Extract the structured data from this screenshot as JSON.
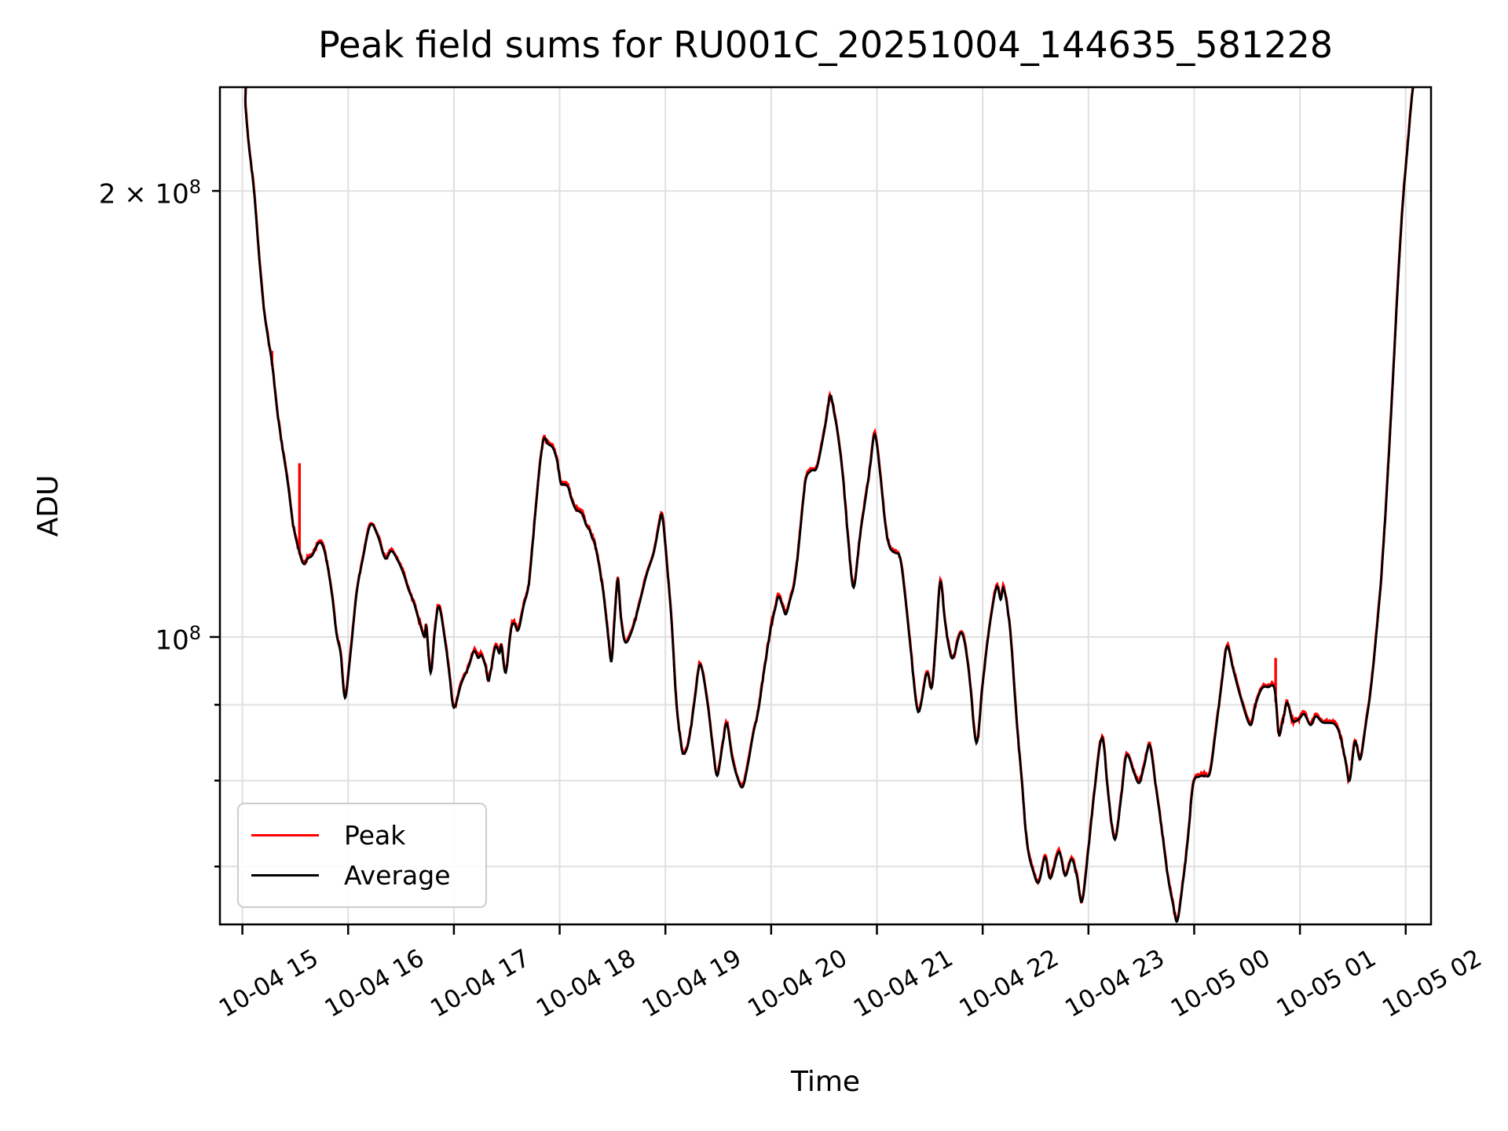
{
  "styles": {
    "background": "#ffffff",
    "grid_color": "#e0e0e0",
    "spine_color": "#000000",
    "legend_border": "#cccccc",
    "peak_color": "#ff0000",
    "average_color": "#000000"
  },
  "chart_data": {
    "type": "line",
    "title": "Peak field sums for RU001C_20251004_144635_581228",
    "xlabel": "Time",
    "ylabel": "ADU",
    "yscale": "log",
    "ylim": [
      64000000.0,
      236000000.0
    ],
    "xlim_hours": [
      14.788,
      26.24
    ],
    "grid": true,
    "legend": {
      "position": "lower left",
      "entries": [
        "Peak",
        "Average"
      ]
    },
    "x_ticks": [
      {
        "hour": 15,
        "label": "10-04 15"
      },
      {
        "hour": 16,
        "label": "10-04 16"
      },
      {
        "hour": 17,
        "label": "10-04 17"
      },
      {
        "hour": 18,
        "label": "10-04 18"
      },
      {
        "hour": 19,
        "label": "10-04 19"
      },
      {
        "hour": 20,
        "label": "10-04 20"
      },
      {
        "hour": 21,
        "label": "10-04 21"
      },
      {
        "hour": 22,
        "label": "10-04 22"
      },
      {
        "hour": 23,
        "label": "10-04 23"
      },
      {
        "hour": 24,
        "label": "10-05 00"
      },
      {
        "hour": 25,
        "label": "10-05 01"
      },
      {
        "hour": 26,
        "label": "10-05 02"
      }
    ],
    "y_ticks": {
      "major_labeled": [
        {
          "value": 100000000.0,
          "base": "10",
          "exp": "8"
        }
      ],
      "minor_labeled": [
        {
          "value": 200000000.0,
          "base": "2 × 10",
          "exp": "8"
        }
      ],
      "minor_unlabeled": [
        70000000.0,
        80000000.0,
        90000000.0
      ]
    },
    "x_unit": "hours since 2025-10-04 00:00",
    "y_unit": "ADU",
    "series": [
      {
        "name": "Average",
        "color": "#000000",
        "points": [
          [
            14.79,
            240000000.0
          ],
          [
            15.01,
            240000000.0
          ],
          [
            15.03,
            228000000.0
          ],
          [
            15.06,
            215000000.0
          ],
          [
            15.11,
            200000000.0
          ],
          [
            15.16,
            180000000.0
          ],
          [
            15.21,
            165000000.0
          ],
          [
            15.28,
            153000000.0
          ],
          [
            15.33,
            142000000.0
          ],
          [
            15.38,
            134000000.0
          ],
          [
            15.43,
            127000000.0
          ],
          [
            15.48,
            119000000.0
          ],
          [
            15.54,
            114000000.0
          ],
          [
            15.58,
            112000000.0
          ],
          [
            15.62,
            113000000.0
          ],
          [
            15.66,
            113500000.0
          ],
          [
            15.72,
            115700000.0
          ],
          [
            15.76,
            115200000.0
          ],
          [
            15.8,
            112200000.0
          ],
          [
            15.85,
            106400000.0
          ],
          [
            15.89,
            100500000.0
          ],
          [
            15.93,
            97300000.0
          ],
          [
            15.97,
            91000000.0
          ],
          [
            16.02,
            97000000.0
          ],
          [
            16.08,
            107000000.0
          ],
          [
            16.14,
            113000000.0
          ],
          [
            16.21,
            119000000.0
          ],
          [
            16.28,
            117000000.0
          ],
          [
            16.35,
            113000000.0
          ],
          [
            16.41,
            114300000.0
          ],
          [
            16.48,
            112200000.0
          ],
          [
            16.53,
            110000000.0
          ],
          [
            16.57,
            107700000.0
          ],
          [
            16.62,
            105500000.0
          ],
          [
            16.67,
            102600000.0
          ],
          [
            16.72,
            100000000.0
          ],
          [
            16.74,
            101500000.0
          ],
          [
            16.78,
            94600000.0
          ],
          [
            16.82,
            101000000.0
          ],
          [
            16.86,
            104800000.0
          ],
          [
            16.92,
            99000000.0
          ],
          [
            16.96,
            94000000.0
          ],
          [
            17.0,
            89600000.0
          ],
          [
            17.07,
            93000000.0
          ],
          [
            17.14,
            95500000.0
          ],
          [
            17.19,
            97800000.0
          ],
          [
            17.23,
            96800000.0
          ],
          [
            17.26,
            97200000.0
          ],
          [
            17.3,
            95500000.0
          ],
          [
            17.33,
            93500000.0
          ],
          [
            17.39,
            98400000.0
          ],
          [
            17.43,
            97500000.0
          ],
          [
            17.45,
            98600000.0
          ],
          [
            17.49,
            94600000.0
          ],
          [
            17.54,
            101100000.0
          ],
          [
            17.57,
            102100000.0
          ],
          [
            17.61,
            101100000.0
          ],
          [
            17.66,
            105000000.0
          ],
          [
            17.71,
            108800000.0
          ],
          [
            17.76,
            119000000.0
          ],
          [
            17.81,
            130000000.0
          ],
          [
            17.85,
            136000000.0
          ],
          [
            17.89,
            135000000.0
          ],
          [
            17.94,
            134000000.0
          ],
          [
            17.98,
            131000000.0
          ],
          [
            18.01,
            127000000.0
          ],
          [
            18.04,
            126800000.0
          ],
          [
            18.08,
            126200000.0
          ],
          [
            18.11,
            124000000.0
          ],
          [
            18.15,
            122000000.0
          ],
          [
            18.19,
            121500000.0
          ],
          [
            18.22,
            120800000.0
          ],
          [
            18.25,
            119000000.0
          ],
          [
            18.28,
            118200000.0
          ],
          [
            18.31,
            116500000.0
          ],
          [
            18.33,
            115800000.0
          ],
          [
            18.37,
            112000000.0
          ],
          [
            18.41,
            107500000.0
          ],
          [
            18.44,
            103000000.0
          ],
          [
            18.46,
            100000000.0
          ],
          [
            18.49,
            96300000.0
          ],
          [
            18.52,
            103000000.0
          ],
          [
            18.55,
            109300000.0
          ],
          [
            18.58,
            103000000.0
          ],
          [
            18.62,
            99200000.0
          ],
          [
            18.68,
            100800000.0
          ],
          [
            18.75,
            105000000.0
          ],
          [
            18.82,
            110000000.0
          ],
          [
            18.89,
            114000000.0
          ],
          [
            18.94,
            119000000.0
          ],
          [
            18.97,
            120700000.0
          ],
          [
            19.01,
            113000000.0
          ],
          [
            19.06,
            102000000.0
          ],
          [
            19.1,
            91000000.0
          ],
          [
            19.14,
            85500000.0
          ],
          [
            19.17,
            83400000.0
          ],
          [
            19.22,
            85000000.0
          ],
          [
            19.28,
            91000000.0
          ],
          [
            19.33,
            95800000.0
          ],
          [
            19.4,
            90000000.0
          ],
          [
            19.45,
            84000000.0
          ],
          [
            19.49,
            80600000.0
          ],
          [
            19.54,
            84500000.0
          ],
          [
            19.58,
            87400000.0
          ],
          [
            19.63,
            83000000.0
          ],
          [
            19.68,
            80400000.0
          ],
          [
            19.73,
            79200000.0
          ],
          [
            19.78,
            82000000.0
          ],
          [
            19.83,
            86000000.0
          ],
          [
            19.88,
            89300000.0
          ],
          [
            19.92,
            93500000.0
          ],
          [
            19.96,
            97700000.0
          ],
          [
            20.0,
            101700000.0
          ],
          [
            20.04,
            104600000.0
          ],
          [
            20.07,
            106500000.0
          ],
          [
            20.11,
            104800000.0
          ],
          [
            20.14,
            103600000.0
          ],
          [
            20.18,
            106000000.0
          ],
          [
            20.22,
            108800000.0
          ],
          [
            20.26,
            115000000.0
          ],
          [
            20.3,
            123000000.0
          ],
          [
            20.33,
            128000000.0
          ],
          [
            20.38,
            129500000.0
          ],
          [
            20.43,
            130000000.0
          ],
          [
            20.48,
            135000000.0
          ],
          [
            20.52,
            140000000.0
          ],
          [
            20.56,
            145500000.0
          ],
          [
            20.6,
            141000000.0
          ],
          [
            20.63,
            137000000.0
          ],
          [
            20.68,
            128000000.0
          ],
          [
            20.73,
            116000000.0
          ],
          [
            20.78,
            108000000.0
          ],
          [
            20.84,
            117000000.0
          ],
          [
            20.9,
            125000000.0
          ],
          [
            20.94,
            131000000.0
          ],
          [
            20.98,
            137000000.0
          ],
          [
            21.03,
            129000000.0
          ],
          [
            21.08,
            119000000.0
          ],
          [
            21.12,
            115000000.0
          ],
          [
            21.17,
            114000000.0
          ],
          [
            21.22,
            113000000.0
          ],
          [
            21.27,
            106000000.0
          ],
          [
            21.32,
            98000000.0
          ],
          [
            21.39,
            89000000.0
          ],
          [
            21.47,
            94500000.0
          ],
          [
            21.52,
            92500000.0
          ],
          [
            21.56,
            100000000.0
          ],
          [
            21.6,
            109000000.0
          ],
          [
            21.64,
            103000000.0
          ],
          [
            21.68,
            98500000.0
          ],
          [
            21.72,
            96800000.0
          ],
          [
            21.8,
            100700000.0
          ],
          [
            21.87,
            94700000.0
          ],
          [
            21.94,
            84800000.0
          ],
          [
            22.0,
            93000000.0
          ],
          [
            22.06,
            101000000.0
          ],
          [
            22.13,
            108000000.0
          ],
          [
            22.17,
            106000000.0
          ],
          [
            22.2,
            107800000.0
          ],
          [
            22.26,
            101000000.0
          ],
          [
            22.32,
            88000000.0
          ],
          [
            22.37,
            80000000.0
          ],
          [
            22.42,
            72500000.0
          ],
          [
            22.48,
            69400000.0
          ],
          [
            22.53,
            68300000.0
          ],
          [
            22.59,
            71000000.0
          ],
          [
            22.64,
            68700000.0
          ],
          [
            22.72,
            71600000.0
          ],
          [
            22.78,
            69000000.0
          ],
          [
            22.84,
            70800000.0
          ],
          [
            22.89,
            69000000.0
          ],
          [
            22.94,
            66300000.0
          ],
          [
            23.0,
            72000000.0
          ],
          [
            23.06,
            79000000.0
          ],
          [
            23.13,
            85500000.0
          ],
          [
            23.19,
            78000000.0
          ],
          [
            23.25,
            73000000.0
          ],
          [
            23.31,
            78000000.0
          ],
          [
            23.36,
            83200000.0
          ],
          [
            23.43,
            81000000.0
          ],
          [
            23.48,
            79700000.0
          ],
          [
            23.53,
            82000000.0
          ],
          [
            23.58,
            84500000.0
          ],
          [
            23.64,
            79000000.0
          ],
          [
            23.69,
            74500000.0
          ],
          [
            23.75,
            69000000.0
          ],
          [
            23.8,
            66000000.0
          ],
          [
            23.84,
            64300000.0
          ],
          [
            23.89,
            68000000.0
          ],
          [
            23.94,
            73000000.0
          ],
          [
            23.99,
            79500000.0
          ],
          [
            24.05,
            80500000.0
          ],
          [
            24.1,
            80600000.0
          ],
          [
            24.15,
            81000000.0
          ],
          [
            24.2,
            86000000.0
          ],
          [
            24.26,
            93000000.0
          ],
          [
            24.31,
            98500000.0
          ],
          [
            24.37,
            95000000.0
          ],
          [
            24.44,
            91000000.0
          ],
          [
            24.53,
            87200000.0
          ],
          [
            24.58,
            90000000.0
          ],
          [
            24.64,
            92300000.0
          ],
          [
            24.7,
            92500000.0
          ],
          [
            24.76,
            92200000.0
          ],
          [
            24.8,
            86000000.0
          ],
          [
            24.84,
            88000000.0
          ],
          [
            24.88,
            90300000.0
          ],
          [
            24.93,
            87800000.0
          ],
          [
            24.99,
            88000000.0
          ],
          [
            25.04,
            88700000.0
          ],
          [
            25.1,
            87200000.0
          ],
          [
            25.15,
            88400000.0
          ],
          [
            25.21,
            87600000.0
          ],
          [
            25.27,
            87500000.0
          ],
          [
            25.33,
            87300000.0
          ],
          [
            25.38,
            85800000.0
          ],
          [
            25.43,
            82500000.0
          ],
          [
            25.47,
            80000000.0
          ],
          [
            25.52,
            85000000.0
          ],
          [
            25.57,
            82700000.0
          ],
          [
            25.62,
            87000000.0
          ],
          [
            25.67,
            92200000.0
          ],
          [
            25.72,
            100000000.0
          ],
          [
            25.77,
            110000000.0
          ],
          [
            25.82,
            125000000.0
          ],
          [
            25.87,
            145000000.0
          ],
          [
            25.92,
            170000000.0
          ],
          [
            25.97,
            195000000.0
          ],
          [
            26.02,
            215000000.0
          ],
          [
            26.07,
            235000000.0
          ],
          [
            26.12,
            240000000.0
          ],
          [
            26.24,
            240000000.0
          ]
        ]
      },
      {
        "name": "Peak",
        "color": "#ff0000",
        "derived": "Average plus small upward noise fringe (red edging above the black line)",
        "spikes": [
          [
            15.28,
            156000000.0
          ],
          [
            15.54,
            131000000.0
          ],
          [
            24.77,
            96800000.0
          ]
        ]
      }
    ]
  }
}
